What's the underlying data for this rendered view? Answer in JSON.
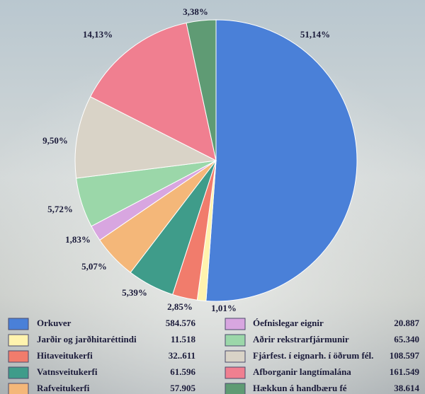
{
  "chart_data": {
    "type": "pie",
    "categories": [
      "Orkuver",
      "Jarðir og jarðhitaréttindi",
      "Hitaveitukerfi",
      "Vatnsveitukerfi",
      "Rafveitukerfi",
      "Óefnislegar eignir",
      "Aðrir rekstrarfjármunir",
      "Fjárfest. í eignarh. í öðrum fél.",
      "Afborganir langtímalána",
      "Hækkun á handbæru fé"
    ],
    "values": [
      51.14,
      1.01,
      2.85,
      5.39,
      5.07,
      1.83,
      5.72,
      9.5,
      14.13,
      3.38
    ],
    "value_labels": [
      "51,14%",
      "1,01%",
      "2,85%",
      "5,39%",
      "5,07%",
      "1,83%",
      "5,72%",
      "9,50%",
      "14,13%",
      "3,38%"
    ],
    "amounts": [
      584576,
      11518,
      32611,
      61596,
      57905,
      20887,
      65340,
      108597,
      161549,
      38614
    ],
    "amount_labels": [
      "584.576",
      "11.518",
      "32..611",
      "61.596",
      "57.905",
      "20.887",
      "65.340",
      "108.597",
      "161.549",
      "38.614"
    ],
    "colors": [
      "#4a80d8",
      "#fff3ae",
      "#f17c6c",
      "#3f9c8a",
      "#f4b779",
      "#d8a6e0",
      "#9bd7a9",
      "#d9d3c7",
      "#f07f90",
      "#5f9b74"
    ]
  }
}
